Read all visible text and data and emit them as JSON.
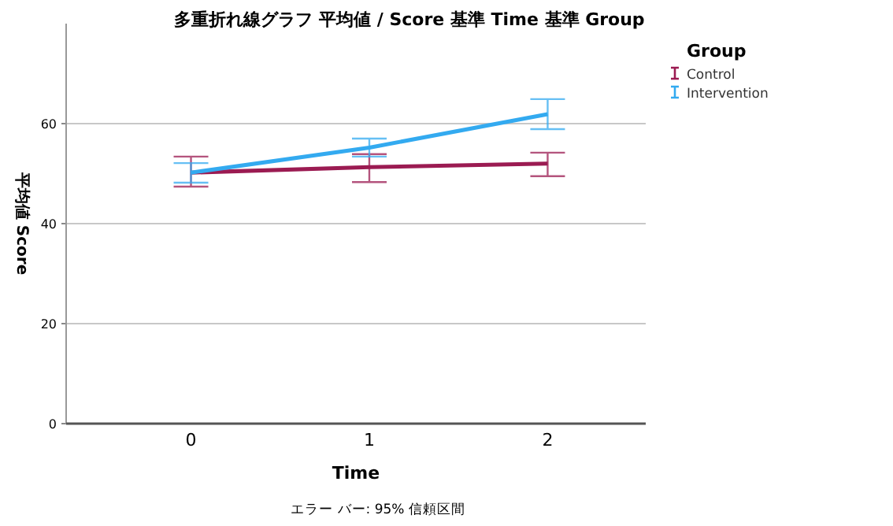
{
  "chart_data": {
    "type": "line",
    "title": "多重折れ線グラフ 平均値 / Score 基準 Time 基準 Group",
    "xlabel": "Time",
    "ylabel": "平均値 Score",
    "legend_title": "Group",
    "categories": [
      "0",
      "1",
      "2"
    ],
    "series": [
      {
        "name": "Control",
        "color": "#9b1b52",
        "values": [
          50.2,
          51.3,
          52.0
        ],
        "errors": [
          [
            47.4,
            53.4
          ],
          [
            48.3,
            53.9
          ],
          [
            49.5,
            54.2
          ]
        ]
      },
      {
        "name": "Intervention",
        "color": "#33aaf0",
        "values": [
          50.2,
          55.2,
          61.9
        ],
        "errors": [
          [
            48.2,
            52.1
          ],
          [
            53.4,
            57.0
          ],
          [
            58.9,
            64.9
          ]
        ]
      }
    ],
    "ylim": [
      0,
      80
    ],
    "yticks": [
      0,
      20,
      40,
      60
    ],
    "grid": "y",
    "legend": "top right",
    "annotations": [
      "エラー バー: 95% 信頼区間"
    ]
  }
}
